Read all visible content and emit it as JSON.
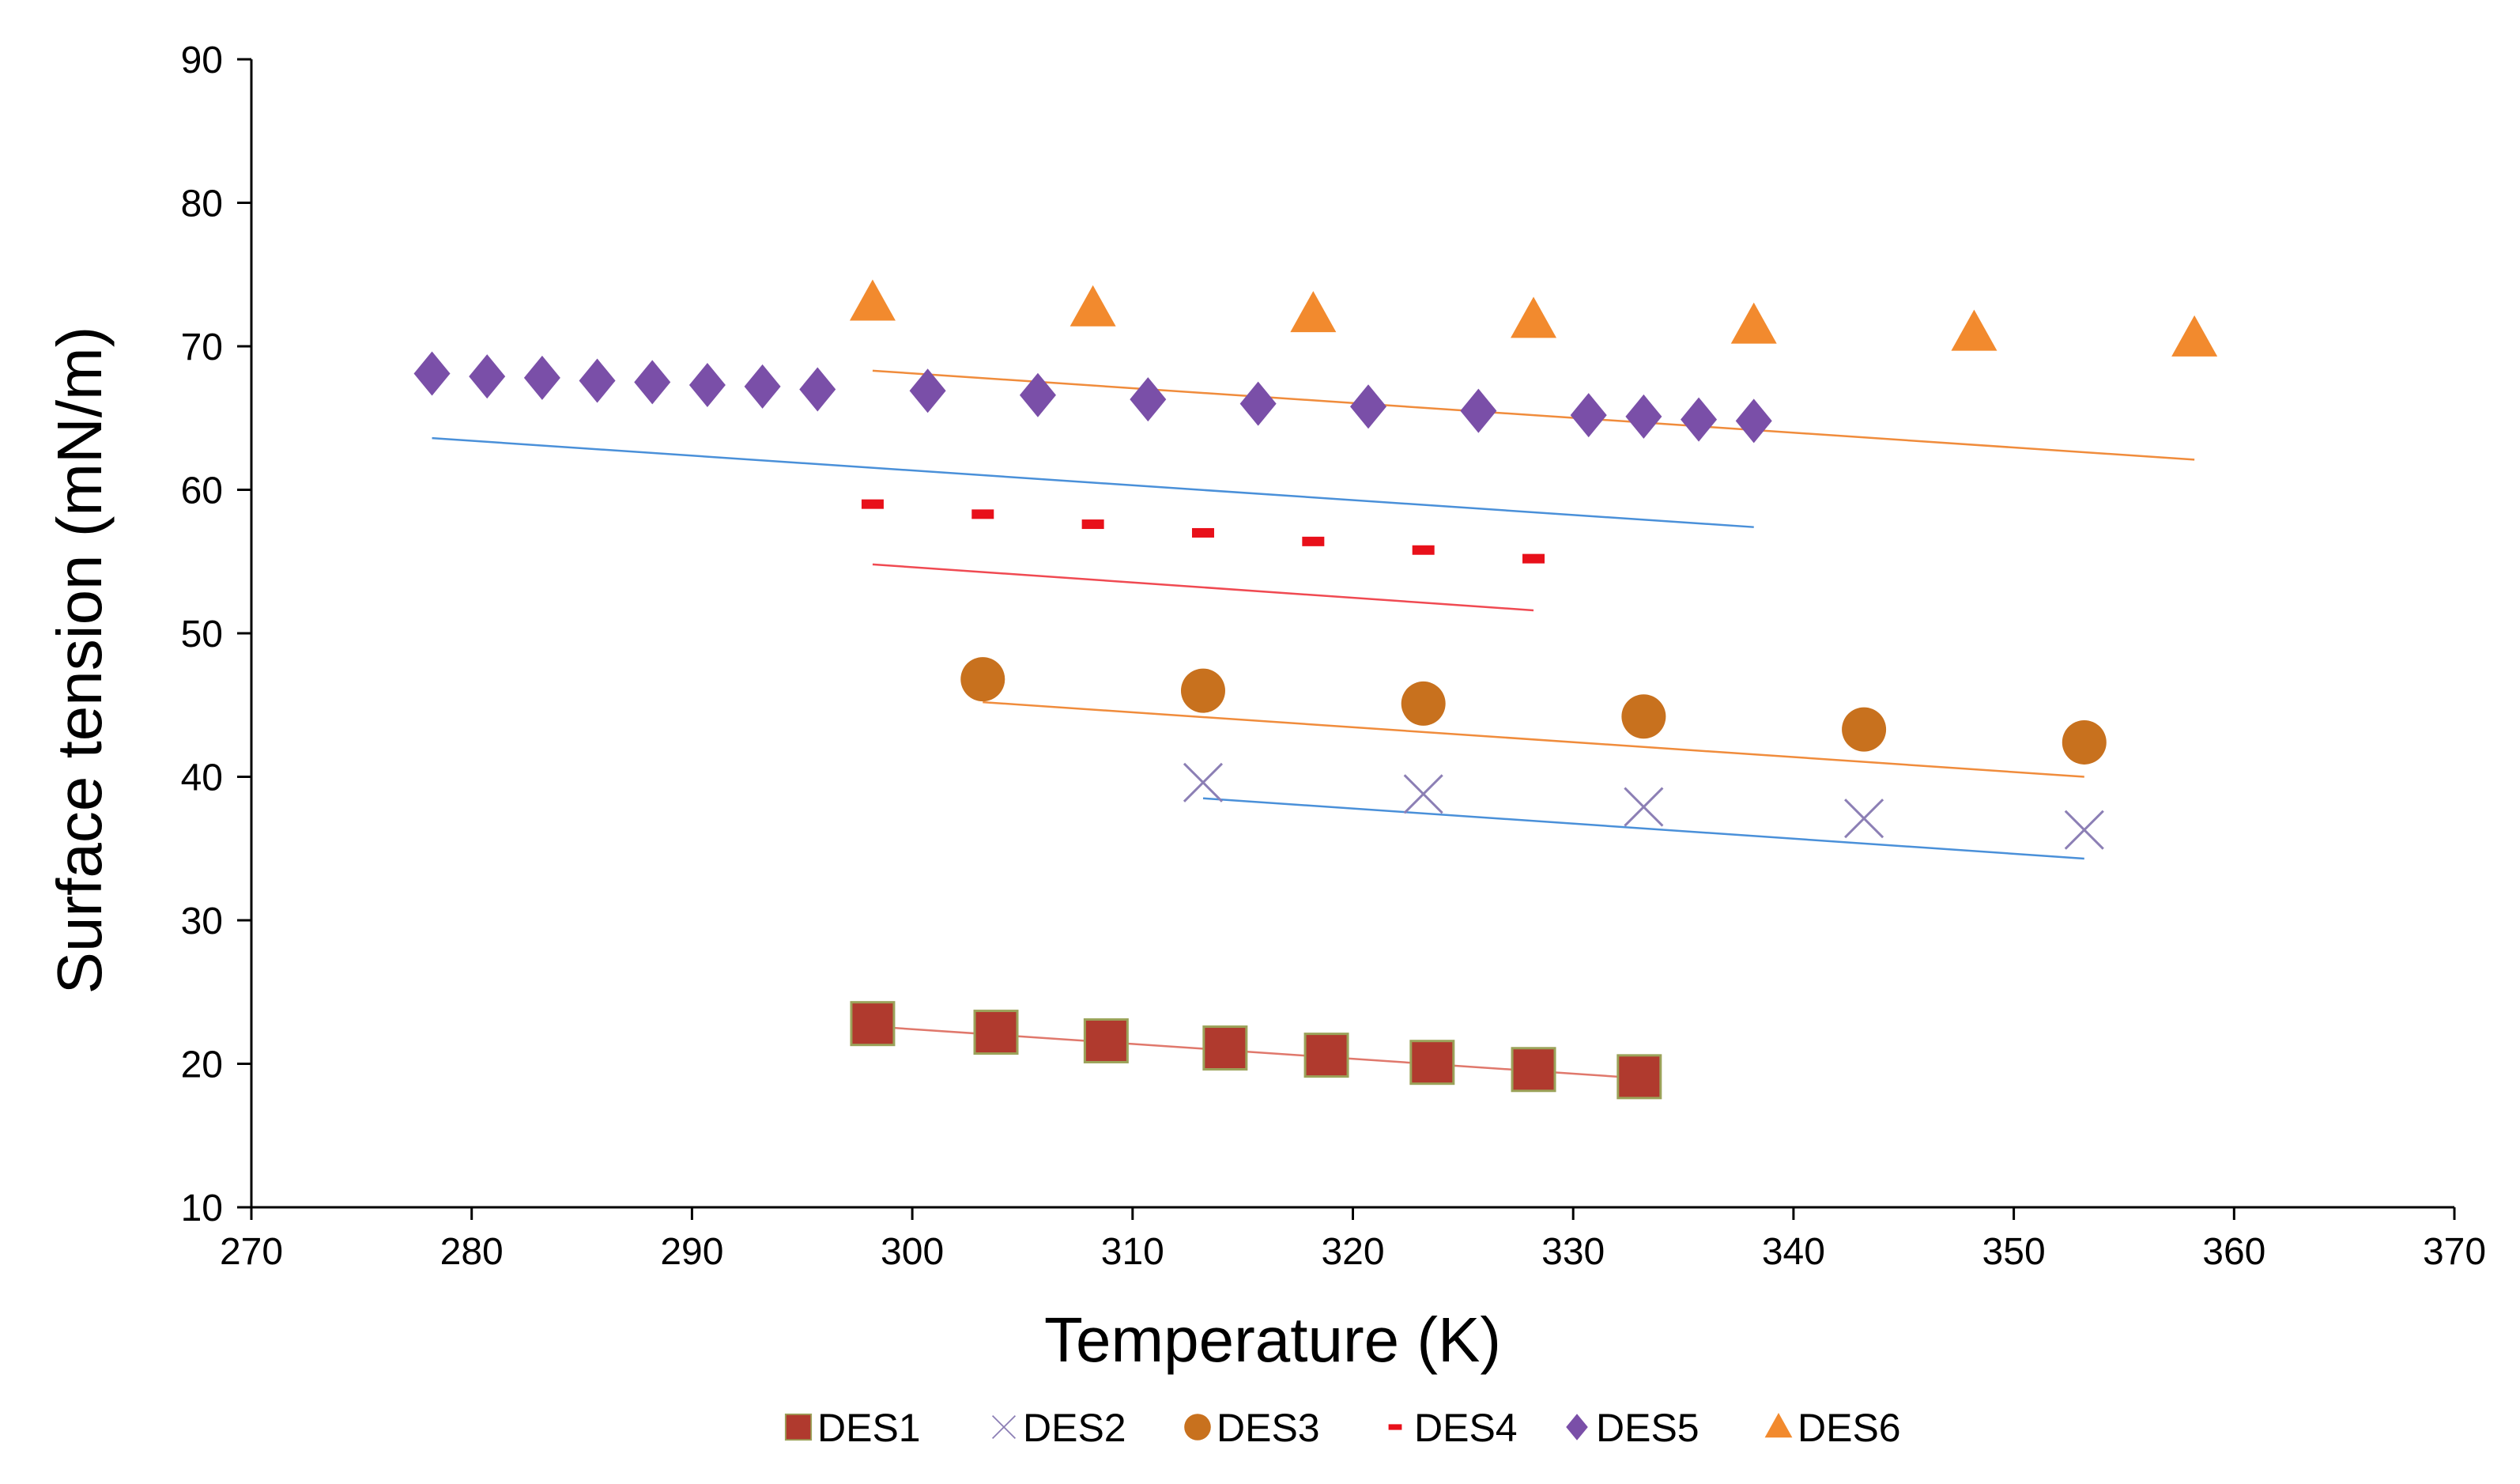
{
  "chart_data": {
    "type": "scatter",
    "title": "",
    "xlabel": "Temperature (K)",
    "ylabel": "Surface tension (mN/m)",
    "xlim": [
      270,
      370
    ],
    "ylim": [
      10,
      90
    ],
    "xticks": [
      270,
      280,
      290,
      300,
      310,
      320,
      330,
      340,
      350,
      360,
      370
    ],
    "yticks": [
      10,
      20,
      30,
      40,
      50,
      60,
      70,
      80,
      90
    ],
    "grid": false,
    "legend_position": "bottom",
    "series": [
      {
        "name": "DES1",
        "marker": "square",
        "color": "#B03A2E",
        "edge_color": "#9BA35A",
        "x": [
          298.2,
          303.8,
          308.8,
          314.2,
          318.8,
          323.6,
          328.2,
          333.0
        ],
        "y": [
          22.8,
          22.2,
          21.6,
          21.1,
          20.6,
          20.1,
          19.6,
          19.1
        ],
        "trendline": {
          "x": [
            298.2,
            333.0
          ],
          "y": [
            22.6,
            19.0
          ],
          "color": "#E0786C"
        }
      },
      {
        "name": "DES2",
        "marker": "x",
        "color": "#8C7FB5",
        "x": [
          313.2,
          323.2,
          333.2,
          343.2,
          353.2
        ],
        "y": [
          39.6,
          38.8,
          37.9,
          37.1,
          36.3
        ],
        "trendline": {
          "x": [
            313.2,
            353.2
          ],
          "y": [
            38.5,
            34.3
          ],
          "color": "#4A90D9"
        }
      },
      {
        "name": "DES3",
        "marker": "circle",
        "color": "#C8711E",
        "x": [
          303.2,
          313.2,
          323.2,
          333.2,
          343.2,
          353.2
        ],
        "y": [
          46.8,
          46.0,
          45.1,
          44.2,
          43.3,
          42.4
        ],
        "trendline": {
          "x": [
            303.2,
            353.2
          ],
          "y": [
            45.2,
            40.0
          ],
          "color": "#F08C3C"
        }
      },
      {
        "name": "DES4",
        "marker": "dash",
        "color": "#E8101A",
        "x": [
          298.2,
          303.2,
          308.2,
          313.2,
          318.2,
          323.2,
          328.2
        ],
        "y": [
          59.0,
          58.3,
          57.6,
          57.0,
          56.4,
          55.8,
          55.2
        ],
        "trendline": {
          "x": [
            298.2,
            328.2
          ],
          "y": [
            54.8,
            51.6
          ],
          "color": "#F04A52"
        }
      },
      {
        "name": "DES5",
        "marker": "diamond",
        "color": "#7A4FA8",
        "x": [
          278.2,
          280.7,
          283.2,
          285.7,
          288.2,
          290.7,
          293.2,
          295.7,
          300.7,
          305.7,
          310.7,
          315.7,
          320.7,
          325.7,
          330.7,
          333.2,
          335.7,
          338.2
        ],
        "y": [
          68.1,
          67.9,
          67.8,
          67.6,
          67.5,
          67.3,
          67.2,
          67.0,
          66.9,
          66.6,
          66.3,
          66.0,
          65.8,
          65.5,
          65.2,
          65.1,
          64.9,
          64.8
        ],
        "trendline": {
          "x": [
            278.2,
            338.2
          ],
          "y": [
            63.6,
            57.4
          ],
          "color": "#4A90D9"
        }
      },
      {
        "name": "DES6",
        "marker": "triangle",
        "color": "#F28A2E",
        "x": [
          298.2,
          308.2,
          318.2,
          328.2,
          338.2,
          348.2,
          358.2
        ],
        "y": [
          73.0,
          72.6,
          72.2,
          71.8,
          71.4,
          70.9,
          70.5
        ],
        "trendline": {
          "x": [
            298.2,
            358.2
          ],
          "y": [
            68.3,
            62.1
          ],
          "color": "#F08C3C"
        }
      }
    ]
  }
}
